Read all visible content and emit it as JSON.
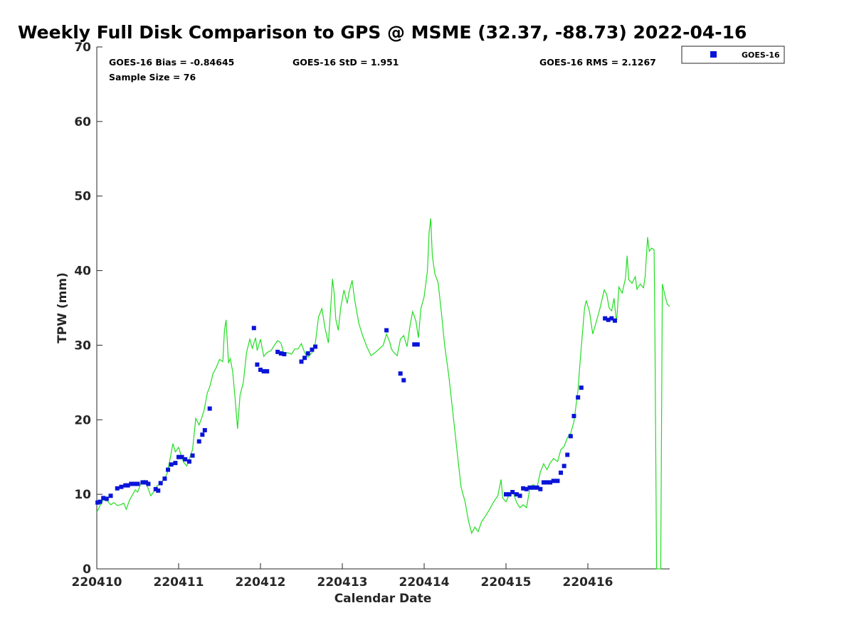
{
  "chart_data": {
    "type": "scatter",
    "title": "Weekly Full Disk Comparison to GPS @ MSME (32.37, -88.73) 2022-04-16",
    "xlabel": "Calendar Date",
    "ylabel": "TPW (mm)",
    "xlim": [
      220410,
      220417
    ],
    "ylim": [
      0,
      70
    ],
    "x_ticks": [
      "220410",
      "220411",
      "220412",
      "220413",
      "220414",
      "220415",
      "220416"
    ],
    "y_ticks": [
      "0",
      "10",
      "20",
      "30",
      "40",
      "50",
      "60",
      "70"
    ],
    "grid": false,
    "legend_position": "outside top-right",
    "stats": {
      "bias": "GOES-16 Bias = -0.84645",
      "std": "GOES-16 StD = 1.951",
      "rms": "GOES-16 RMS = 2.1267",
      "sample": "Sample Size = 76"
    },
    "colors": {
      "goes": "#0a14d8",
      "gps": "#22dd22"
    },
    "series": [
      {
        "name": "GOES-16",
        "type": "scatter",
        "points": [
          [
            220410.01,
            8.9
          ],
          [
            220410.04,
            9.0
          ],
          [
            220410.08,
            9.5
          ],
          [
            220410.12,
            9.4
          ],
          [
            220410.17,
            9.8
          ],
          [
            220410.25,
            10.8
          ],
          [
            220410.3,
            11.0
          ],
          [
            220410.35,
            11.2
          ],
          [
            220410.38,
            11.2
          ],
          [
            220410.42,
            11.4
          ],
          [
            220410.46,
            11.4
          ],
          [
            220410.5,
            11.4
          ],
          [
            220410.56,
            11.6
          ],
          [
            220410.6,
            11.6
          ],
          [
            220410.63,
            11.4
          ],
          [
            220410.72,
            10.7
          ],
          [
            220410.75,
            10.5
          ],
          [
            220410.78,
            11.5
          ],
          [
            220410.83,
            12.1
          ],
          [
            220410.87,
            13.3
          ],
          [
            220410.91,
            14.0
          ],
          [
            220410.96,
            14.2
          ],
          [
            220411.0,
            15.0
          ],
          [
            220411.04,
            15.0
          ],
          [
            220411.08,
            14.7
          ],
          [
            220411.13,
            14.4
          ],
          [
            220411.17,
            15.2
          ],
          [
            220411.25,
            17.1
          ],
          [
            220411.29,
            18.0
          ],
          [
            220411.32,
            18.6
          ],
          [
            220411.38,
            21.5
          ],
          [
            220411.92,
            32.3
          ],
          [
            220411.96,
            27.4
          ],
          [
            220412.0,
            26.7
          ],
          [
            220412.04,
            26.5
          ],
          [
            220412.08,
            26.5
          ],
          [
            220412.21,
            29.1
          ],
          [
            220412.25,
            28.9
          ],
          [
            220412.29,
            28.8
          ],
          [
            220412.5,
            27.8
          ],
          [
            220412.54,
            28.3
          ],
          [
            220412.58,
            28.9
          ],
          [
            220412.63,
            29.4
          ],
          [
            220412.67,
            29.8
          ],
          [
            220413.54,
            32.0
          ],
          [
            220413.71,
            26.2
          ],
          [
            220413.75,
            25.3
          ],
          [
            220413.88,
            30.1
          ],
          [
            220413.92,
            30.1
          ],
          [
            220415.0,
            10.0
          ],
          [
            220415.04,
            10.0
          ],
          [
            220415.08,
            10.3
          ],
          [
            220415.13,
            10.0
          ],
          [
            220415.17,
            9.8
          ],
          [
            220415.21,
            10.8
          ],
          [
            220415.25,
            10.7
          ],
          [
            220415.29,
            10.9
          ],
          [
            220415.33,
            10.9
          ],
          [
            220415.38,
            10.9
          ],
          [
            220415.42,
            10.7
          ],
          [
            220415.46,
            11.6
          ],
          [
            220415.5,
            11.6
          ],
          [
            220415.54,
            11.6
          ],
          [
            220415.58,
            11.8
          ],
          [
            220415.63,
            11.8
          ],
          [
            220415.67,
            12.9
          ],
          [
            220415.71,
            13.8
          ],
          [
            220415.75,
            15.3
          ],
          [
            220415.79,
            17.8
          ],
          [
            220415.83,
            20.5
          ],
          [
            220415.88,
            23.0
          ],
          [
            220415.92,
            24.3
          ],
          [
            220416.21,
            33.6
          ],
          [
            220416.25,
            33.4
          ],
          [
            220416.29,
            33.6
          ],
          [
            220416.33,
            33.3
          ]
        ]
      },
      {
        "name": "",
        "type": "line",
        "points": [
          [
            220410.0,
            7.6
          ],
          [
            220410.04,
            8.5
          ],
          [
            220410.08,
            9.3
          ],
          [
            220410.13,
            9.1
          ],
          [
            220410.17,
            8.6
          ],
          [
            220410.21,
            8.9
          ],
          [
            220410.25,
            8.5
          ],
          [
            220410.29,
            8.6
          ],
          [
            220410.33,
            8.8
          ],
          [
            220410.36,
            8.0
          ],
          [
            220410.4,
            9.2
          ],
          [
            220410.44,
            10.0
          ],
          [
            220410.47,
            10.6
          ],
          [
            220410.5,
            10.3
          ],
          [
            220410.54,
            11.5
          ],
          [
            220410.58,
            11.9
          ],
          [
            220410.62,
            11.0
          ],
          [
            220410.66,
            9.8
          ],
          [
            220410.7,
            10.4
          ],
          [
            220410.74,
            11.2
          ],
          [
            220410.78,
            11.4
          ],
          [
            220410.82,
            12.0
          ],
          [
            220410.86,
            12.8
          ],
          [
            220410.9,
            15.0
          ],
          [
            220410.93,
            16.8
          ],
          [
            220410.96,
            15.7
          ],
          [
            220411.0,
            16.3
          ],
          [
            220411.03,
            15.3
          ],
          [
            220411.06,
            14.3
          ],
          [
            220411.1,
            13.8
          ],
          [
            220411.13,
            14.8
          ],
          [
            220411.17,
            16.0
          ],
          [
            220411.21,
            20.2
          ],
          [
            220411.25,
            19.3
          ],
          [
            220411.28,
            20.2
          ],
          [
            220411.31,
            21.2
          ],
          [
            220411.35,
            23.6
          ],
          [
            220411.38,
            24.4
          ],
          [
            220411.42,
            26.2
          ],
          [
            220411.46,
            27.0
          ],
          [
            220411.5,
            28.1
          ],
          [
            220411.54,
            27.8
          ],
          [
            220411.56,
            32.0
          ],
          [
            220411.58,
            33.4
          ],
          [
            220411.61,
            27.6
          ],
          [
            220411.63,
            28.2
          ],
          [
            220411.66,
            26.5
          ],
          [
            220411.69,
            22.8
          ],
          [
            220411.72,
            18.8
          ],
          [
            220411.75,
            23.3
          ],
          [
            220411.79,
            25.0
          ],
          [
            220411.83,
            29.0
          ],
          [
            220411.87,
            30.8
          ],
          [
            220411.9,
            29.6
          ],
          [
            220411.94,
            31.0
          ],
          [
            220411.96,
            29.3
          ],
          [
            220412.0,
            30.8
          ],
          [
            220412.04,
            28.5
          ],
          [
            220412.08,
            29.0
          ],
          [
            220412.13,
            29.3
          ],
          [
            220412.17,
            30.0
          ],
          [
            220412.21,
            30.6
          ],
          [
            220412.25,
            30.3
          ],
          [
            220412.29,
            28.7
          ],
          [
            220412.33,
            29.0
          ],
          [
            220412.38,
            28.8
          ],
          [
            220412.42,
            29.5
          ],
          [
            220412.46,
            29.5
          ],
          [
            220412.5,
            30.2
          ],
          [
            220412.54,
            29.0
          ],
          [
            220412.58,
            28.4
          ],
          [
            220412.63,
            29.0
          ],
          [
            220412.67,
            30.3
          ],
          [
            220412.71,
            33.8
          ],
          [
            220412.75,
            34.9
          ],
          [
            220412.79,
            32.2
          ],
          [
            220412.83,
            30.3
          ],
          [
            220412.85,
            33.7
          ],
          [
            220412.88,
            38.9
          ],
          [
            220412.9,
            37.0
          ],
          [
            220412.92,
            33.5
          ],
          [
            220412.95,
            32.0
          ],
          [
            220412.98,
            35.0
          ],
          [
            220413.02,
            37.4
          ],
          [
            220413.06,
            35.6
          ],
          [
            220413.08,
            37.0
          ],
          [
            220413.12,
            38.7
          ],
          [
            220413.15,
            36.2
          ],
          [
            220413.2,
            33.0
          ],
          [
            220413.25,
            31.2
          ],
          [
            220413.3,
            29.8
          ],
          [
            220413.35,
            28.6
          ],
          [
            220413.4,
            29.0
          ],
          [
            220413.45,
            29.5
          ],
          [
            220413.5,
            30.0
          ],
          [
            220413.54,
            31.5
          ],
          [
            220413.58,
            30.4
          ],
          [
            220413.6,
            29.5
          ],
          [
            220413.63,
            29.0
          ],
          [
            220413.67,
            28.6
          ],
          [
            220413.71,
            30.8
          ],
          [
            220413.75,
            31.3
          ],
          [
            220413.79,
            29.8
          ],
          [
            220413.83,
            32.8
          ],
          [
            220413.86,
            34.5
          ],
          [
            220413.9,
            33.2
          ],
          [
            220413.93,
            31.0
          ],
          [
            220413.96,
            34.9
          ],
          [
            220414.0,
            36.5
          ],
          [
            220414.04,
            40.0
          ],
          [
            220414.06,
            45.0
          ],
          [
            220414.08,
            47.0
          ],
          [
            220414.1,
            42.0
          ],
          [
            220414.13,
            39.6
          ],
          [
            220414.17,
            38.4
          ],
          [
            220414.21,
            34.5
          ],
          [
            220414.25,
            30.0
          ],
          [
            220414.3,
            26.0
          ],
          [
            220414.35,
            21.0
          ],
          [
            220414.4,
            16.0
          ],
          [
            220414.45,
            11.0
          ],
          [
            220414.5,
            9.0
          ],
          [
            220414.54,
            6.5
          ],
          [
            220414.58,
            4.8
          ],
          [
            220414.62,
            5.6
          ],
          [
            220414.66,
            5.0
          ],
          [
            220414.7,
            6.3
          ],
          [
            220414.75,
            7.1
          ],
          [
            220414.8,
            8.0
          ],
          [
            220414.85,
            9.0
          ],
          [
            220414.9,
            9.8
          ],
          [
            220414.94,
            12.0
          ],
          [
            220414.96,
            9.5
          ],
          [
            220415.0,
            9.0
          ],
          [
            220415.04,
            10.0
          ],
          [
            220415.08,
            10.5
          ],
          [
            220415.13,
            8.9
          ],
          [
            220415.17,
            8.2
          ],
          [
            220415.21,
            8.6
          ],
          [
            220415.25,
            8.2
          ],
          [
            220415.29,
            10.7
          ],
          [
            220415.33,
            11.3
          ],
          [
            220415.38,
            11.0
          ],
          [
            220415.42,
            13.0
          ],
          [
            220415.46,
            14.1
          ],
          [
            220415.5,
            13.3
          ],
          [
            220415.54,
            14.2
          ],
          [
            220415.58,
            14.8
          ],
          [
            220415.63,
            14.4
          ],
          [
            220415.67,
            16.0
          ],
          [
            220415.71,
            16.4
          ],
          [
            220415.75,
            17.6
          ],
          [
            220415.79,
            18.2
          ],
          [
            220415.83,
            19.7
          ],
          [
            220415.88,
            24.0
          ],
          [
            220415.9,
            27.0
          ],
          [
            220415.93,
            31.0
          ],
          [
            220415.96,
            35.0
          ],
          [
            220415.98,
            36.0
          ],
          [
            220416.02,
            34.5
          ],
          [
            220416.06,
            31.5
          ],
          [
            220416.1,
            33.0
          ],
          [
            220416.15,
            35.0
          ],
          [
            220416.2,
            37.4
          ],
          [
            220416.23,
            36.8
          ],
          [
            220416.26,
            35.0
          ],
          [
            220416.29,
            34.6
          ],
          [
            220416.32,
            36.3
          ],
          [
            220416.35,
            33.0
          ],
          [
            220416.38,
            37.8
          ],
          [
            220416.42,
            37.0
          ],
          [
            220416.46,
            39.0
          ],
          [
            220416.48,
            42.0
          ],
          [
            220416.5,
            38.8
          ],
          [
            220416.54,
            38.3
          ],
          [
            220416.58,
            39.2
          ],
          [
            220416.6,
            37.5
          ],
          [
            220416.64,
            38.2
          ],
          [
            220416.68,
            37.7
          ],
          [
            220416.7,
            39.2
          ],
          [
            220416.73,
            44.5
          ],
          [
            220416.75,
            42.6
          ],
          [
            220416.78,
            43.0
          ],
          [
            220416.81,
            42.8
          ],
          [
            220416.82,
            31.0
          ],
          [
            220416.84,
            0.0
          ],
          [
            220416.87,
            0.0
          ],
          [
            220416.89,
            0.0
          ],
          [
            220416.91,
            38.2
          ],
          [
            220416.94,
            36.8
          ],
          [
            220416.97,
            35.5
          ],
          [
            220417.0,
            35.2
          ]
        ]
      }
    ]
  }
}
